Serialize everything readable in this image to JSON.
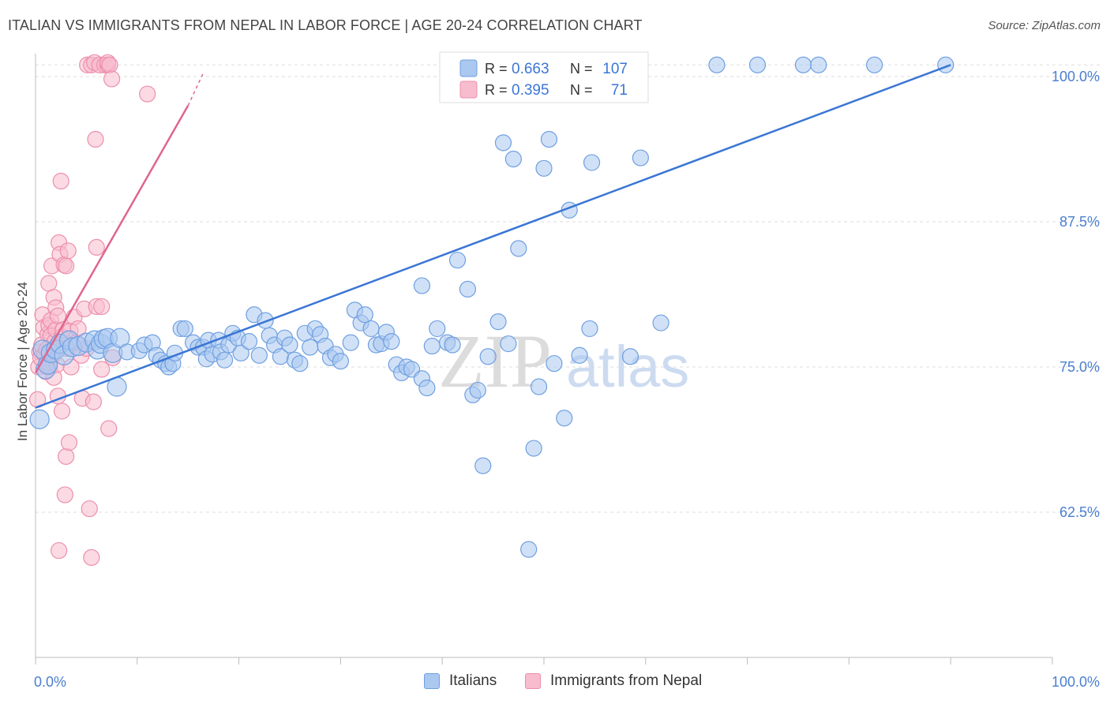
{
  "title": "ITALIAN VS IMMIGRANTS FROM NEPAL IN LABOR FORCE | AGE 20-24 CORRELATION CHART",
  "source": "Source: ZipAtlas.com",
  "watermark": {
    "zip": "ZIP",
    "atlas": "atlas"
  },
  "colors": {
    "italians_fill": "#aac8f0",
    "italians_stroke": "#6f9fe0",
    "italians_line": "#3a76d4",
    "nepal_fill": "#f7bccd",
    "nepal_stroke": "#ec8fab",
    "nepal_line": "#e0658f",
    "axis_label": "#4a7fd0",
    "grid": "#dddddd"
  },
  "legend_top": {
    "rows": [
      {
        "r_label": "R =",
        "r_value": "0.663",
        "n_label": "N =",
        "n_value": "107"
      },
      {
        "r_label": "R =",
        "r_value": "0.395",
        "n_label": "N =",
        "n_value": "71"
      }
    ]
  },
  "chart_data": {
    "type": "scatter",
    "title": "ITALIAN VS IMMIGRANTS FROM NEPAL IN LABOR FORCE | AGE 20-24 CORRELATION CHART",
    "xlabel": "",
    "ylabel": "In Labor Force | Age 20-24",
    "xlim": [
      0,
      100
    ],
    "ylim": [
      50,
      101.2
    ],
    "x_tick_labels": [
      "0.0%",
      "100.0%"
    ],
    "y_ticks": [
      62.5,
      75.0,
      87.5,
      100.0
    ],
    "y_tick_labels": [
      "62.5%",
      "75.0%",
      "87.5%",
      "100.0%"
    ],
    "legend_position": "top-center",
    "grid": true,
    "series": [
      {
        "name": "Italians",
        "R": 0.663,
        "N": 107,
        "trend": {
          "x": [
            0,
            90
          ],
          "y": [
            71.5,
            101.0
          ]
        },
        "points": [
          [
            0.4,
            70.5
          ],
          [
            0.7,
            76.5
          ],
          [
            1.0,
            74.8
          ],
          [
            1.2,
            75.2
          ],
          [
            1.5,
            76.2
          ],
          [
            2.0,
            76.5
          ],
          [
            2.4,
            77.0
          ],
          [
            2.8,
            76.0
          ],
          [
            3.3,
            77.3
          ],
          [
            3.6,
            76.7
          ],
          [
            4.2,
            76.8
          ],
          [
            5.0,
            77.1
          ],
          [
            5.8,
            77.3
          ],
          [
            6.1,
            76.5
          ],
          [
            6.4,
            77.0
          ],
          [
            6.7,
            77.4
          ],
          [
            7.1,
            77.5
          ],
          [
            7.6,
            76.2
          ],
          [
            8.0,
            73.3
          ],
          [
            8.3,
            77.5
          ],
          [
            9.0,
            76.3
          ],
          [
            10.2,
            76.4
          ],
          [
            10.7,
            76.9
          ],
          [
            11.5,
            77.1
          ],
          [
            11.9,
            76.0
          ],
          [
            12.3,
            75.6
          ],
          [
            12.8,
            75.3
          ],
          [
            13.1,
            75.0
          ],
          [
            13.5,
            75.3
          ],
          [
            13.7,
            76.2
          ],
          [
            14.3,
            78.3
          ],
          [
            14.7,
            78.3
          ],
          [
            15.5,
            77.1
          ],
          [
            16.0,
            76.7
          ],
          [
            16.5,
            76.7
          ],
          [
            16.8,
            75.7
          ],
          [
            17.0,
            77.3
          ],
          [
            17.4,
            76.1
          ],
          [
            18.0,
            77.3
          ],
          [
            18.2,
            76.3
          ],
          [
            18.6,
            75.6
          ],
          [
            19.0,
            76.9
          ],
          [
            19.4,
            77.9
          ],
          [
            19.9,
            77.5
          ],
          [
            20.2,
            76.2
          ],
          [
            21.0,
            77.2
          ],
          [
            21.5,
            79.5
          ],
          [
            22.0,
            76.0
          ],
          [
            22.6,
            79.0
          ],
          [
            23.0,
            77.7
          ],
          [
            23.5,
            76.9
          ],
          [
            24.1,
            75.9
          ],
          [
            24.5,
            77.5
          ],
          [
            25.0,
            76.9
          ],
          [
            25.5,
            75.6
          ],
          [
            26.0,
            75.3
          ],
          [
            26.5,
            77.9
          ],
          [
            27.0,
            76.7
          ],
          [
            27.5,
            78.3
          ],
          [
            28.0,
            77.8
          ],
          [
            28.5,
            76.8
          ],
          [
            29.0,
            75.8
          ],
          [
            29.5,
            76.1
          ],
          [
            30.0,
            75.5
          ],
          [
            31.0,
            77.1
          ],
          [
            31.4,
            79.9
          ],
          [
            32.0,
            78.8
          ],
          [
            32.4,
            79.5
          ],
          [
            33.0,
            78.3
          ],
          [
            33.5,
            76.9
          ],
          [
            34.0,
            77.0
          ],
          [
            34.5,
            78.0
          ],
          [
            35.0,
            77.2
          ],
          [
            35.5,
            75.2
          ],
          [
            36.0,
            74.5
          ],
          [
            36.5,
            75.0
          ],
          [
            37.0,
            74.8
          ],
          [
            38.0,
            74.0
          ],
          [
            38.5,
            73.2
          ],
          [
            39.0,
            76.8
          ],
          [
            39.5,
            78.3
          ],
          [
            40.5,
            77.1
          ],
          [
            41.0,
            76.9
          ],
          [
            38.0,
            82.0
          ],
          [
            41.5,
            84.2
          ],
          [
            42.5,
            81.7
          ],
          [
            43.0,
            72.6
          ],
          [
            43.5,
            73.0
          ],
          [
            44.0,
            66.5
          ],
          [
            44.5,
            75.9
          ],
          [
            45.5,
            78.9
          ],
          [
            46.0,
            94.3
          ],
          [
            46.5,
            77.0
          ],
          [
            47.0,
            92.9
          ],
          [
            47.5,
            85.2
          ],
          [
            48.5,
            59.3
          ],
          [
            49.0,
            68.0
          ],
          [
            49.5,
            73.3
          ],
          [
            50.0,
            92.1
          ],
          [
            50.5,
            94.6
          ],
          [
            51.0,
            75.3
          ],
          [
            52.0,
            70.6
          ],
          [
            52.5,
            88.5
          ],
          [
            53.5,
            76.0
          ],
          [
            54.5,
            78.3
          ],
          [
            54.7,
            92.6
          ],
          [
            58.5,
            75.9
          ],
          [
            59.5,
            93.0
          ],
          [
            61.5,
            78.8
          ],
          [
            67.0,
            101.0
          ],
          [
            71.0,
            101.0
          ],
          [
            75.5,
            101.0
          ],
          [
            77.0,
            101.0
          ],
          [
            82.5,
            101.0
          ],
          [
            89.5,
            101.0
          ]
        ]
      },
      {
        "name": "Immigrants from Nepal",
        "R": 0.395,
        "N": 71,
        "trend": {
          "x": [
            0,
            15
          ],
          "y": [
            74.5,
            97.5
          ],
          "dashed_to": {
            "x": 16.5,
            "y": 100.3
          }
        },
        "points": [
          [
            0.2,
            72.2
          ],
          [
            0.3,
            75.0
          ],
          [
            0.4,
            76.3
          ],
          [
            0.5,
            75.8
          ],
          [
            0.6,
            76.9
          ],
          [
            0.7,
            79.5
          ],
          [
            0.8,
            78.4
          ],
          [
            0.9,
            76.1
          ],
          [
            1.0,
            74.6
          ],
          [
            1.1,
            76.5
          ],
          [
            1.2,
            75.4
          ],
          [
            1.2,
            77.8
          ],
          [
            1.3,
            78.6
          ],
          [
            1.3,
            82.2
          ],
          [
            1.4,
            75.0
          ],
          [
            1.5,
            77.7
          ],
          [
            1.5,
            79.0
          ],
          [
            1.6,
            83.7
          ],
          [
            1.7,
            76.0
          ],
          [
            1.8,
            74.1
          ],
          [
            1.8,
            81.0
          ],
          [
            1.9,
            77.2
          ],
          [
            2.0,
            78.2
          ],
          [
            2.0,
            80.1
          ],
          [
            2.1,
            75.2
          ],
          [
            2.1,
            76.8
          ],
          [
            2.2,
            79.4
          ],
          [
            2.2,
            72.5
          ],
          [
            2.3,
            59.2
          ],
          [
            2.3,
            85.7
          ],
          [
            2.4,
            84.7
          ],
          [
            2.5,
            91.0
          ],
          [
            2.6,
            71.2
          ],
          [
            2.6,
            77.6
          ],
          [
            2.7,
            78.2
          ],
          [
            2.8,
            83.8
          ],
          [
            2.9,
            64.0
          ],
          [
            3.0,
            67.3
          ],
          [
            3.0,
            83.7
          ],
          [
            3.1,
            76.6
          ],
          [
            3.2,
            85.0
          ],
          [
            3.3,
            68.5
          ],
          [
            3.4,
            78.1
          ],
          [
            3.5,
            75.0
          ],
          [
            3.8,
            79.3
          ],
          [
            4.0,
            77.1
          ],
          [
            4.2,
            78.3
          ],
          [
            4.5,
            76.0
          ],
          [
            4.6,
            72.3
          ],
          [
            4.8,
            80.0
          ],
          [
            5.0,
            76.6
          ],
          [
            5.3,
            62.8
          ],
          [
            5.5,
            58.6
          ],
          [
            5.7,
            72.0
          ],
          [
            6.0,
            80.2
          ],
          [
            5.1,
            101.0
          ],
          [
            5.5,
            101.0
          ],
          [
            5.8,
            101.2
          ],
          [
            5.9,
            94.6
          ],
          [
            6.0,
            85.3
          ],
          [
            6.3,
            101.0
          ],
          [
            6.5,
            80.2
          ],
          [
            6.5,
            74.8
          ],
          [
            6.8,
            101.0
          ],
          [
            7.1,
            101.0
          ],
          [
            7.1,
            101.2
          ],
          [
            7.3,
            101.0
          ],
          [
            7.5,
            99.8
          ],
          [
            7.2,
            69.7
          ],
          [
            7.6,
            75.8
          ],
          [
            11.0,
            98.5
          ]
        ]
      }
    ]
  },
  "legend_bottom": [
    "Italians",
    "Immigrants from Nepal"
  ]
}
